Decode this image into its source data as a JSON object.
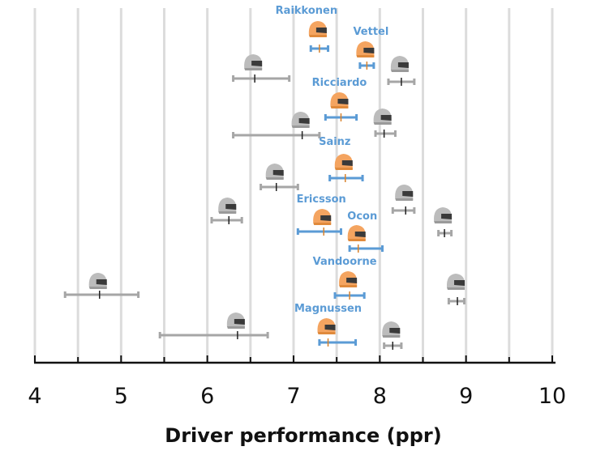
{
  "chart_data": {
    "type": "scatter",
    "title": "",
    "xlabel": "Driver performance (ppr)",
    "ylabel": "",
    "xlim": [
      4,
      10
    ],
    "xticks": [
      4,
      5,
      6,
      7,
      8,
      9,
      10
    ],
    "grid": "vertical dashed gridlines at every 0.5",
    "colors": {
      "highlight": "#5b9bd5",
      "helmet_highlight": "#f4a460",
      "muted": "#a6a6a6",
      "helmet_muted": "#bcbcbc"
    },
    "points": [
      {
        "driver": "Raikkonen",
        "value": 7.3,
        "low": 7.2,
        "high": 7.4,
        "highlighted": true
      },
      {
        "driver": "Vettel",
        "value": 7.85,
        "low": 7.77,
        "high": 7.93,
        "highlighted": true
      },
      {
        "driver": "",
        "value": 6.55,
        "low": 6.3,
        "high": 6.95,
        "highlighted": false
      },
      {
        "driver": "",
        "value": 8.25,
        "low": 8.1,
        "high": 8.4,
        "highlighted": false
      },
      {
        "driver": "Ricciardo",
        "value": 7.55,
        "low": 7.37,
        "high": 7.73,
        "highlighted": true
      },
      {
        "driver": "",
        "value": 7.1,
        "low": 6.3,
        "high": 7.3,
        "highlighted": false
      },
      {
        "driver": "",
        "value": 8.05,
        "low": 7.95,
        "high": 8.18,
        "highlighted": false
      },
      {
        "driver": "Sainz",
        "value": 7.6,
        "low": 7.42,
        "high": 7.8,
        "highlighted": true
      },
      {
        "driver": "",
        "value": 6.8,
        "low": 6.62,
        "high": 7.05,
        "highlighted": false
      },
      {
        "driver": "",
        "value": 6.25,
        "low": 6.05,
        "high": 6.4,
        "highlighted": false
      },
      {
        "driver": "",
        "value": 8.3,
        "low": 8.15,
        "high": 8.4,
        "highlighted": false
      },
      {
        "driver": "Ericsson",
        "value": 7.35,
        "low": 7.05,
        "high": 7.55,
        "highlighted": true
      },
      {
        "driver": "",
        "value": 8.75,
        "low": 8.68,
        "high": 8.83,
        "highlighted": false
      },
      {
        "driver": "Ocon",
        "value": 7.75,
        "low": 7.65,
        "high": 8.03,
        "highlighted": true
      },
      {
        "driver": "Vandoorne",
        "value": 7.65,
        "low": 7.48,
        "high": 7.82,
        "highlighted": true
      },
      {
        "driver": "",
        "value": 4.75,
        "low": 4.35,
        "high": 5.2,
        "highlighted": false
      },
      {
        "driver": "",
        "value": 8.9,
        "low": 8.8,
        "high": 8.98,
        "highlighted": false
      },
      {
        "driver": "",
        "value": 6.35,
        "low": 5.45,
        "high": 6.7,
        "highlighted": false
      },
      {
        "driver": "Magnussen",
        "value": 7.4,
        "low": 7.3,
        "high": 7.72,
        "highlighted": true
      },
      {
        "driver": "",
        "value": 8.15,
        "low": 8.05,
        "high": 8.25,
        "highlighted": false
      }
    ]
  }
}
